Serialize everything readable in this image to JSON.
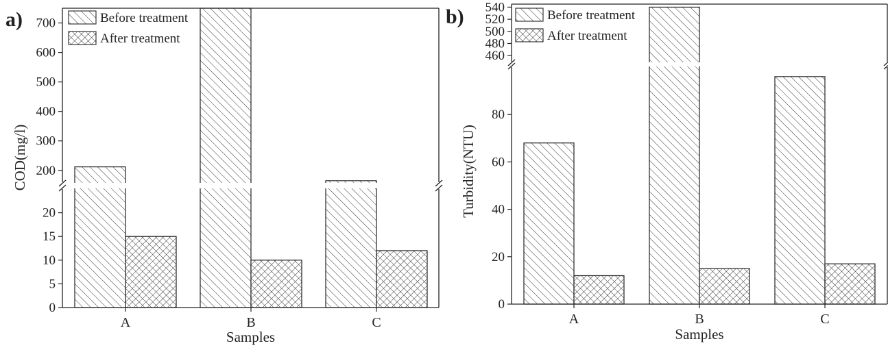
{
  "chart_data": [
    {
      "panel_label": "a)",
      "type": "bar",
      "xlabel": "Samples",
      "ylabel": "COD(mg/l)",
      "categories": [
        "A",
        "B",
        "C"
      ],
      "series": [
        {
          "name": "Before treatment",
          "values": [
            212,
            760,
            165
          ],
          "pattern": "diagonal-hatch"
        },
        {
          "name": "After treatment",
          "values": [
            15,
            10,
            12
          ],
          "pattern": "cross-hatch"
        }
      ],
      "broken_axis": {
        "lower_range": [
          0,
          25
        ],
        "lower_ticks": [
          0,
          5,
          10,
          15,
          20
        ],
        "upper_range": [
          160,
          750
        ],
        "upper_ticks": [
          200,
          300,
          400,
          500,
          600,
          700
        ]
      },
      "legend_position": "top-left",
      "grid": false
    },
    {
      "panel_label": "b)",
      "type": "bar",
      "xlabel": "Samples",
      "ylabel": "Turbidity(NTU)",
      "categories": [
        "A",
        "B",
        "C"
      ],
      "series": [
        {
          "name": "Before treatment",
          "values": [
            68,
            540,
            96
          ],
          "pattern": "diagonal-hatch"
        },
        {
          "name": "After treatment",
          "values": [
            12,
            15,
            17
          ],
          "pattern": "cross-hatch"
        }
      ],
      "broken_axis": {
        "lower_range": [
          0,
          100
        ],
        "lower_ticks": [
          0,
          20,
          40,
          60,
          80
        ],
        "upper_range": [
          450,
          545
        ],
        "upper_ticks": [
          460,
          480,
          500,
          520,
          540
        ]
      },
      "legend_position": "top-left",
      "grid": false
    }
  ]
}
